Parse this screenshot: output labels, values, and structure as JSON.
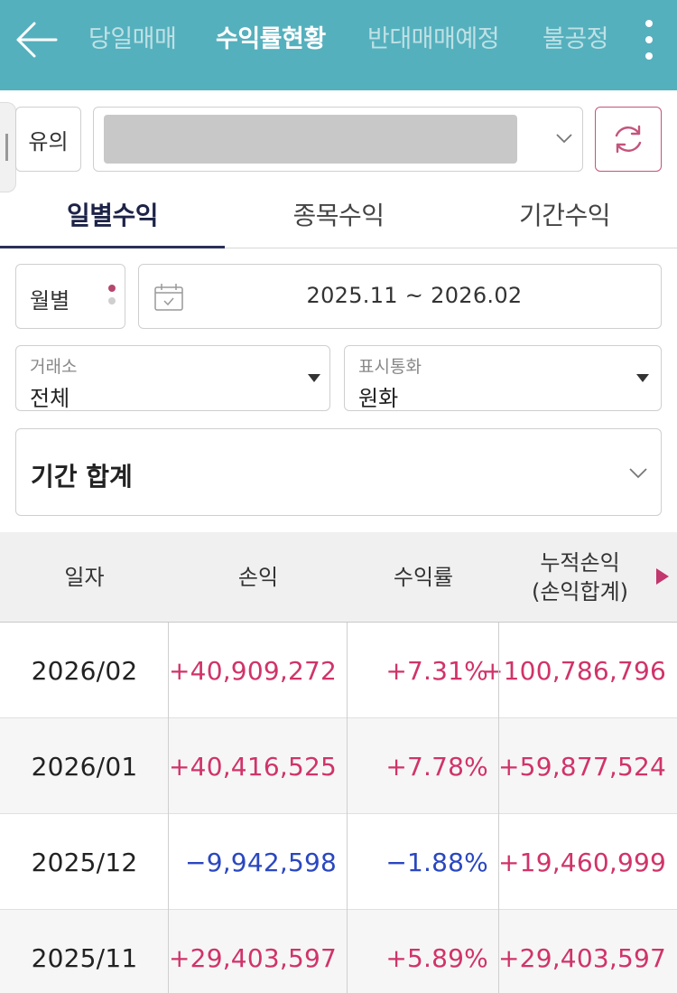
{
  "header": {
    "tabs": [
      {
        "label": "당일매매",
        "active": false
      },
      {
        "label": "수익률현황",
        "active": true
      },
      {
        "label": "반대매매예정",
        "active": false
      },
      {
        "label": "불공정",
        "active": false
      }
    ],
    "background_color": "#55b0bd"
  },
  "account": {
    "notice_label": "유의",
    "refresh_color": "#c4547c"
  },
  "subtabs": [
    {
      "label": "일별수익",
      "active": true
    },
    {
      "label": "종목수익",
      "active": false
    },
    {
      "label": "기간수익",
      "active": false
    }
  ],
  "filters": {
    "period_type": "월별",
    "date_range": "2025.11 ~ 2026.02",
    "exchange": {
      "caption": "거래소",
      "value": "전체"
    },
    "currency": {
      "caption": "표시통화",
      "value": "원화"
    },
    "summary_title": "기간 합계"
  },
  "table": {
    "headers": {
      "date": "일자",
      "pnl": "손익",
      "rate": "수익률",
      "cumulative_line1": "누적손익",
      "cumulative_line2": "(손익합계)"
    },
    "rows": [
      {
        "date": "2026/02",
        "pnl": "+40,909,272",
        "rate": "+7.31%",
        "cumulative": "+100,786,796",
        "pnl_sign": "pos",
        "rate_sign": "pos",
        "cum_sign": "pos"
      },
      {
        "date": "2026/01",
        "pnl": "+40,416,525",
        "rate": "+7.78%",
        "cumulative": "+59,877,524",
        "pnl_sign": "pos",
        "rate_sign": "pos",
        "cum_sign": "pos"
      },
      {
        "date": "2025/12",
        "pnl": "−9,942,598",
        "rate": "−1.88%",
        "cumulative": "+19,460,999",
        "pnl_sign": "neg",
        "rate_sign": "neg",
        "cum_sign": "pos"
      },
      {
        "date": "2025/11",
        "pnl": "+29,403,597",
        "rate": "+5.89%",
        "cumulative": "+29,403,597",
        "pnl_sign": "pos",
        "rate_sign": "pos",
        "cum_sign": "pos"
      }
    ],
    "positive_color": "#d0336a",
    "negative_color": "#2a47c0"
  }
}
